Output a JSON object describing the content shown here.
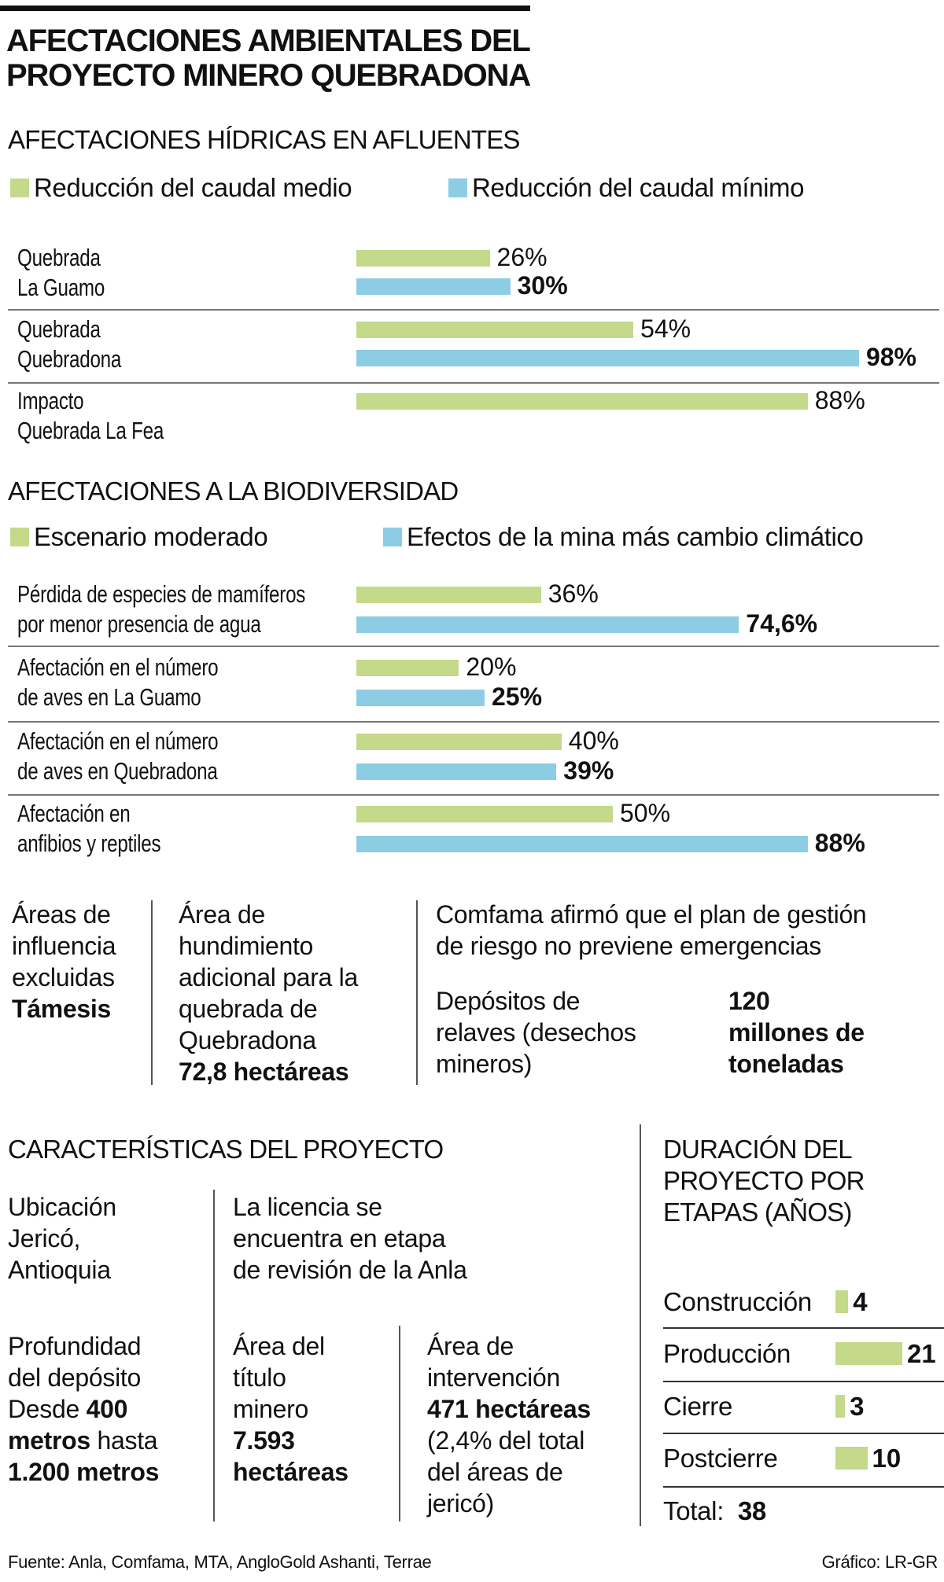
{
  "title": "AFECTACIONES AMBIENTALES DEL\nPROYECTO MINERO QUEBRADONA",
  "colors": {
    "green": "#c5d98a",
    "blue": "#8ccde3",
    "text": "#111111",
    "separator": "#777777"
  },
  "chart_data": [
    {
      "type": "bar",
      "title": "AFECTACIONES HÍDRICAS EN AFLUENTES",
      "orientation": "horizontal",
      "unit": "%",
      "legend": [
        "Reducción del caudal medio",
        "Reducción del caudal mínimo"
      ],
      "categories": [
        "Quebrada\nLa Guamo",
        "Quebrada\nQuebradona",
        "Impacto\nQuebrada La Fea"
      ],
      "series": [
        {
          "name": "Reducción del caudal medio",
          "values": [
            26,
            54,
            88
          ],
          "labels": [
            "26%",
            "54%",
            "88%"
          ]
        },
        {
          "name": "Reducción del caudal mínimo",
          "values": [
            30,
            98,
            null
          ],
          "labels": [
            "30%",
            "98%",
            null
          ]
        }
      ]
    },
    {
      "type": "bar",
      "title": "AFECTACIONES A LA BIODIVERSIDAD",
      "orientation": "horizontal",
      "unit": "%",
      "legend": [
        "Escenario moderado",
        "Efectos de la mina más cambio climático"
      ],
      "categories": [
        "Pérdida de especies de mamíferos\npor menor presencia de agua",
        "Afectación en el número\nde aves en La Guamo",
        "Afectación en el número\nde aves en Quebradona",
        "Afectación en\nanfibios y reptiles"
      ],
      "series": [
        {
          "name": "Escenario moderado",
          "values": [
            36,
            20,
            40,
            50
          ],
          "labels": [
            "36%",
            "20%",
            "40%",
            "50%"
          ]
        },
        {
          "name": "Efectos de la mina más cambio climático",
          "values": [
            74.6,
            25,
            39,
            88
          ],
          "labels": [
            "74,6%",
            "25%",
            "39%",
            "88%"
          ]
        }
      ]
    },
    {
      "type": "bar",
      "title": "DURACIÓN DEL\nPROYECTO POR\nETAPAS (AÑOS)",
      "orientation": "horizontal",
      "unit": "años",
      "categories": [
        "Construcción",
        "Producción",
        "Cierre",
        "Postcierre"
      ],
      "values": [
        4,
        21,
        3,
        10
      ],
      "total_label": "Total:",
      "total": "38"
    }
  ],
  "info": {
    "areas_label": "Áreas de\ninfluencia\nexcluidas",
    "areas_value": "Támesis",
    "hundimiento_label": "Área de\nhundimiento\nadicional para la\nquebrada de\nQuebradona",
    "hundimiento_value": "72,8 hectáreas",
    "comfama": "Comfama afirmó que el plan de gestión\nde riesgo no previene emergencias",
    "relaves_label": "Depósitos de\nrelaves (desechos\nmineros)",
    "relaves_value": "120\nmillones de\ntoneladas"
  },
  "caracteristicas": {
    "heading": "CARACTERÍSTICAS DEL PROYECTO",
    "ubicacion": "Ubicación\nJericó,\nAntioquia",
    "licencia": "La licencia se\nencuentra en etapa\nde revisión de la Anla",
    "profundidad_label": "Profundidad\ndel depósito\nDesde ",
    "profundidad_b1": "400\nmetros",
    "profundidad_mid": " hasta\n",
    "profundidad_b2": "1.200 metros",
    "titulo_label": "Área del\ntítulo\nminero\n",
    "titulo_value": "7.593\nhectáreas",
    "intervencion_label": "Área de\nintervención\n",
    "intervencion_value": "471 hectáreas",
    "intervencion_note": "\n(2,4% del total\ndel áreas de\njericó)"
  },
  "footer": {
    "source": "Fuente: Anla, Comfama, MTA, AngloGold Ashanti, Terrae",
    "credit": "Gráfico: LR-GR"
  }
}
